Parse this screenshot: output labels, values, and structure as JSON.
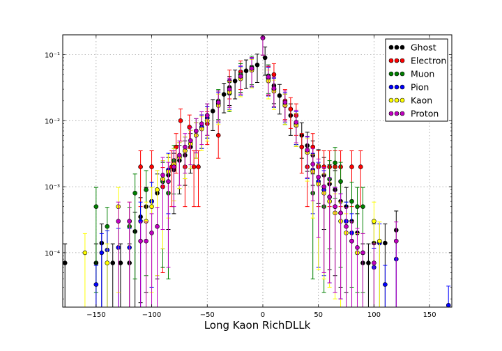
{
  "chart_data": {
    "type": "scatter",
    "title": "",
    "xlabel": "Long Kaon RichDLLk",
    "ylabel": "",
    "xlim": [
      -180,
      170
    ],
    "ylim": [
      1.5e-05,
      0.2
    ],
    "yscale": "log",
    "grid": true,
    "legend_position": "top-right",
    "x_ticks": [
      -150,
      -100,
      -50,
      0,
      50,
      100,
      150
    ],
    "x_tick_labels": [
      "−150",
      "−100",
      "−50",
      "0",
      "50",
      "100",
      "150"
    ],
    "y_ticks": [
      0.0001,
      0.001,
      0.01,
      0.1
    ],
    "y_tick_labels": [
      "10⁻⁴",
      "10⁻³",
      "10⁻²",
      "10⁻¹"
    ],
    "series": [
      {
        "name": "Ghost",
        "color": "#000000",
        "points": [
          [
            -178,
            7e-05
          ],
          [
            -150,
            7e-05
          ],
          [
            -145,
            0.00014
          ],
          [
            -135,
            7e-05
          ],
          [
            -128,
            7e-05
          ],
          [
            -120,
            7e-05
          ],
          [
            -115,
            0.00021
          ],
          [
            -110,
            0.00035
          ],
          [
            -105,
            0.0005
          ],
          [
            -100,
            0.0006
          ],
          [
            -95,
            0.0008
          ],
          [
            -90,
            0.0012
          ],
          [
            -85,
            0.0015
          ],
          [
            -80,
            0.0018
          ],
          [
            -75,
            0.0025
          ],
          [
            -70,
            0.003
          ],
          [
            -65,
            0.004
          ],
          [
            -60,
            0.006
          ],
          [
            -55,
            0.008
          ],
          [
            -50,
            0.011
          ],
          [
            -45,
            0.014
          ],
          [
            -40,
            0.019
          ],
          [
            -35,
            0.025
          ],
          [
            -30,
            0.032
          ],
          [
            -25,
            0.04
          ],
          [
            -20,
            0.05
          ],
          [
            -15,
            0.057
          ],
          [
            -10,
            0.062
          ],
          [
            -5,
            0.07
          ],
          [
            0,
            0.18
          ],
          [
            2,
            0.09
          ],
          [
            5,
            0.045
          ],
          [
            10,
            0.034
          ],
          [
            15,
            0.024
          ],
          [
            20,
            0.017
          ],
          [
            25,
            0.012
          ],
          [
            30,
            0.0085
          ],
          [
            35,
            0.006
          ],
          [
            40,
            0.0042
          ],
          [
            45,
            0.003
          ],
          [
            50,
            0.0021
          ],
          [
            55,
            0.0015
          ],
          [
            60,
            0.0011
          ],
          [
            65,
            0.0009
          ],
          [
            70,
            0.0006
          ],
          [
            75,
            0.0005
          ],
          [
            80,
            0.0003
          ],
          [
            85,
            0.0002
          ],
          [
            90,
            7e-05
          ],
          [
            95,
            7e-05
          ],
          [
            100,
            0.00014
          ],
          [
            110,
            0.00014
          ],
          [
            120,
            0.00022
          ]
        ]
      },
      {
        "name": "Electron",
        "color": "#ff0000",
        "points": [
          [
            -110,
            0.002
          ],
          [
            -100,
            0.002
          ],
          [
            -90,
            0.001
          ],
          [
            -82,
            0.002
          ],
          [
            -78,
            0.004
          ],
          [
            -74,
            0.01
          ],
          [
            -70,
            0.002
          ],
          [
            -66,
            0.008
          ],
          [
            -62,
            0.002
          ],
          [
            -58,
            0.002
          ],
          [
            -50,
            0.009
          ],
          [
            -40,
            0.006
          ],
          [
            -30,
            0.04
          ],
          [
            -20,
            0.055
          ],
          [
            -10,
            0.06
          ],
          [
            0,
            0.18
          ],
          [
            5,
            0.045
          ],
          [
            10,
            0.05
          ],
          [
            20,
            0.02
          ],
          [
            25,
            0.015
          ],
          [
            30,
            0.012
          ],
          [
            35,
            0.004
          ],
          [
            40,
            0.002
          ],
          [
            45,
            0.004
          ],
          [
            50,
            0.002
          ],
          [
            55,
            0.002
          ],
          [
            60,
            0.002
          ],
          [
            65,
            0.002
          ],
          [
            70,
            0.002
          ],
          [
            80,
            0.002
          ],
          [
            88,
            0.002
          ]
        ]
      },
      {
        "name": "Muon",
        "color": "#008000",
        "points": [
          [
            -150,
            0.0005
          ],
          [
            -140,
            0.00025
          ],
          [
            -120,
            0.00025
          ],
          [
            -115,
            0.0008
          ],
          [
            -105,
            0.0009
          ],
          [
            -90,
            0.0012
          ],
          [
            -85,
            0.0008
          ],
          [
            -80,
            0.0025
          ],
          [
            -70,
            0.0035
          ],
          [
            -60,
            0.007
          ],
          [
            -50,
            0.012
          ],
          [
            -40,
            0.02
          ],
          [
            -30,
            0.026
          ],
          [
            -20,
            0.05
          ],
          [
            -10,
            0.065
          ],
          [
            0,
            0.18
          ],
          [
            5,
            0.048
          ],
          [
            10,
            0.03
          ],
          [
            20,
            0.017
          ],
          [
            30,
            0.009
          ],
          [
            40,
            0.0035
          ],
          [
            45,
            0.0008
          ],
          [
            55,
            0.0005
          ],
          [
            60,
            0.0013
          ],
          [
            65,
            0.0023
          ],
          [
            70,
            0.0012
          ],
          [
            75,
            0.0003
          ],
          [
            80,
            0.0006
          ],
          [
            85,
            0.0005
          ],
          [
            90,
            0.0005
          ]
        ]
      },
      {
        "name": "Pion",
        "color": "#0000ff",
        "points": [
          [
            -150,
            3.3e-05
          ],
          [
            -145,
            0.0001
          ],
          [
            -140,
            0.00011
          ],
          [
            -130,
            0.00012
          ],
          [
            -120,
            0.00012
          ],
          [
            -110,
            0.0003
          ],
          [
            -100,
            0.0006
          ],
          [
            -95,
            0.0009
          ],
          [
            -90,
            0.0013
          ],
          [
            -85,
            0.0018
          ],
          [
            -80,
            0.0022
          ],
          [
            -75,
            0.0028
          ],
          [
            -70,
            0.0035
          ],
          [
            -65,
            0.0045
          ],
          [
            -60,
            0.006
          ],
          [
            -55,
            0.008
          ],
          [
            -50,
            0.011
          ],
          [
            -40,
            0.018
          ],
          [
            -30,
            0.028
          ],
          [
            -20,
            0.045
          ],
          [
            -10,
            0.06
          ],
          [
            0,
            0.18
          ],
          [
            5,
            0.044
          ],
          [
            10,
            0.03
          ],
          [
            20,
            0.018
          ],
          [
            30,
            0.009
          ],
          [
            40,
            0.0035
          ],
          [
            45,
            0.0018
          ],
          [
            50,
            0.0012
          ],
          [
            55,
            0.0009
          ],
          [
            60,
            0.0007
          ],
          [
            65,
            0.0005
          ],
          [
            70,
            0.0004
          ],
          [
            75,
            0.0003
          ],
          [
            80,
            0.0002
          ],
          [
            85,
            0.0001
          ],
          [
            90,
            0.0001
          ],
          [
            100,
            6e-05
          ],
          [
            105,
            0.00014
          ],
          [
            110,
            3.3e-05
          ],
          [
            120,
            8e-05
          ],
          [
            167,
            1.6e-05
          ]
        ]
      },
      {
        "name": "Kaon",
        "color": "#ffff00",
        "points": [
          [
            -160,
            0.0001
          ],
          [
            -140,
            7e-05
          ],
          [
            -130,
            0.0005
          ],
          [
            -120,
            0.0003
          ],
          [
            -105,
            0.0003
          ],
          [
            -100,
            0.0005
          ],
          [
            -95,
            0.0009
          ],
          [
            -90,
            0.0013
          ],
          [
            -85,
            0.0017
          ],
          [
            -80,
            0.0022
          ],
          [
            -75,
            0.0028
          ],
          [
            -70,
            0.0035
          ],
          [
            -65,
            0.0045
          ],
          [
            -60,
            0.006
          ],
          [
            -55,
            0.0075
          ],
          [
            -50,
            0.01
          ],
          [
            -40,
            0.017
          ],
          [
            -30,
            0.027
          ],
          [
            -20,
            0.043
          ],
          [
            -10,
            0.058
          ],
          [
            0,
            0.18
          ],
          [
            5,
            0.04
          ],
          [
            10,
            0.028
          ],
          [
            20,
            0.017
          ],
          [
            30,
            0.0085
          ],
          [
            40,
            0.0033
          ],
          [
            45,
            0.0017
          ],
          [
            50,
            0.0011
          ],
          [
            55,
            0.0008
          ],
          [
            60,
            0.0006
          ],
          [
            65,
            0.0004
          ],
          [
            70,
            0.0003
          ],
          [
            75,
            0.0002
          ],
          [
            80,
            0.00015
          ],
          [
            85,
            0.0001
          ],
          [
            90,
            0.0001
          ],
          [
            100,
            0.0003
          ],
          [
            105,
            0.00015
          ]
        ]
      },
      {
        "name": "Proton",
        "color": "#bf00bf",
        "points": [
          [
            -130,
            0.0003
          ],
          [
            -120,
            0.0003
          ],
          [
            -110,
            0.00015
          ],
          [
            -105,
            0.00015
          ],
          [
            -100,
            0.0002
          ],
          [
            -95,
            0.00025
          ],
          [
            -90,
            0.0015
          ],
          [
            -85,
            0.0012
          ],
          [
            -80,
            0.002
          ],
          [
            -75,
            0.003
          ],
          [
            -70,
            0.004
          ],
          [
            -65,
            0.005
          ],
          [
            -60,
            0.007
          ],
          [
            -55,
            0.009
          ],
          [
            -50,
            0.012
          ],
          [
            -40,
            0.019
          ],
          [
            -30,
            0.03
          ],
          [
            -20,
            0.047
          ],
          [
            -10,
            0.062
          ],
          [
            0,
            0.18
          ],
          [
            5,
            0.046
          ],
          [
            10,
            0.031
          ],
          [
            20,
            0.019
          ],
          [
            30,
            0.0095
          ],
          [
            40,
            0.0036
          ],
          [
            45,
            0.0022
          ],
          [
            50,
            0.0014
          ],
          [
            55,
            0.001
          ],
          [
            60,
            0.0007
          ],
          [
            65,
            0.0005
          ],
          [
            70,
            0.0004
          ],
          [
            75,
            0.00025
          ],
          [
            80,
            0.00015
          ],
          [
            85,
            0.00012
          ],
          [
            90,
            0.0001
          ],
          [
            100,
            7e-05
          ],
          [
            120,
            0.00015
          ]
        ]
      }
    ]
  }
}
